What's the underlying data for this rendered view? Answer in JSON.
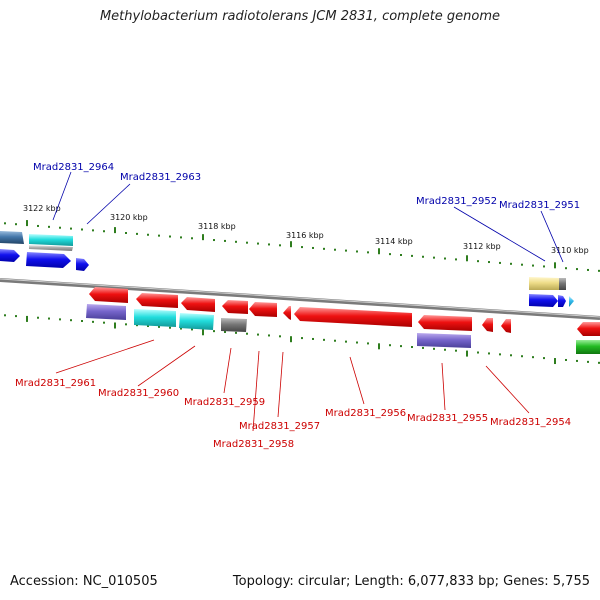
{
  "title": "Methylobacterium radiotolerans JCM 2831, complete genome",
  "footer": {
    "accession": "Accession: NC_010505",
    "topology": "Topology: circular; Length: 6,077,833 bp; Genes: 5,755"
  },
  "colors": {
    "backbone": "#777777",
    "tick": "#2e7d1e",
    "upper_label": "#0000aa",
    "lower_label": "#cc0000",
    "red_gene": "#ee1111",
    "blue_gene": "#1111ee",
    "cyan_gene": "#22dddd",
    "lavender_gene": "#7766cc",
    "grey_gene": "#777777",
    "steel_gene": "#4477aa",
    "yellow_gene": "#eedd88",
    "green_gene": "#22bb22",
    "skyblue_gene": "#33bbee",
    "silver_gene": "#aaaaaa"
  },
  "scale_labels": [
    "3122 kbp",
    "3120 kbp",
    "3118 kbp",
    "3116 kbp",
    "3114 kbp",
    "3112 kbp",
    "3110 kbp"
  ],
  "upper_gene_labels": [
    "Mrad2831_2964",
    "Mrad2831_2963",
    "Mrad2831_2952",
    "Mrad2831_2951"
  ],
  "lower_gene_labels": [
    "Mrad2831_2961",
    "Mrad2831_2960",
    "Mrad2831_2959",
    "Mrad2831_2958",
    "Mrad2831_2957",
    "Mrad2831_2956",
    "Mrad2831_2955",
    "Mrad2831_2954"
  ]
}
